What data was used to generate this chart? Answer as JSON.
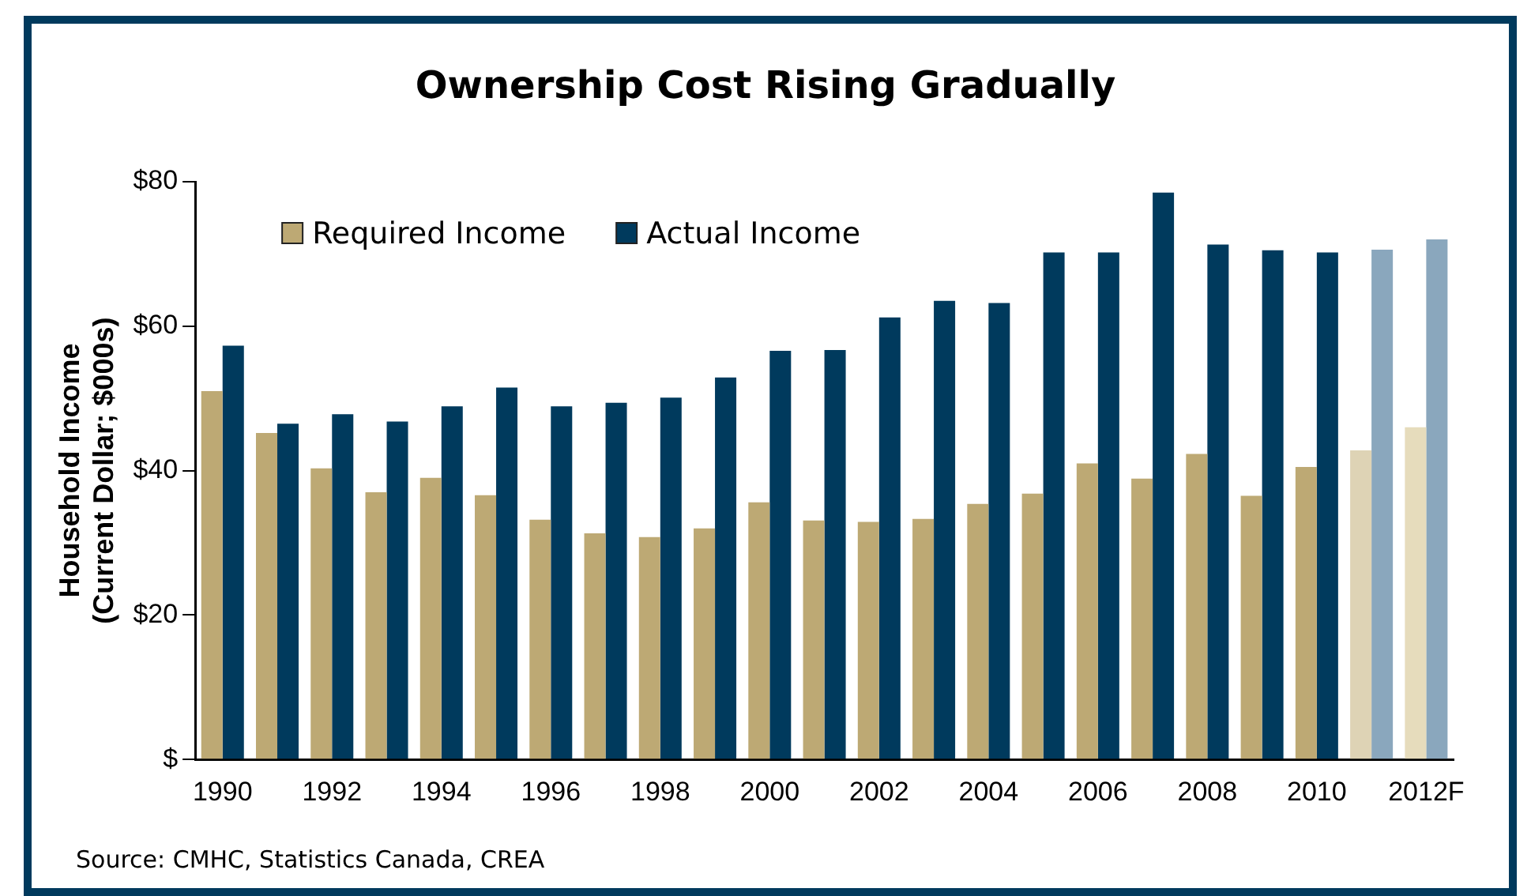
{
  "chart_data": {
    "type": "bar",
    "title": "Ownership Cost Rising Gradually",
    "ylabel": "Household Income\n(Current Dollar; $000s)",
    "categories": [
      "1990",
      null,
      "1992",
      null,
      "1994",
      null,
      "1996",
      null,
      "1998",
      null,
      "2000",
      null,
      "2002",
      null,
      "2004",
      null,
      "2006",
      null,
      "2008",
      null,
      "2010",
      null,
      "2012F"
    ],
    "series": [
      {
        "name": "Required Income",
        "color": "#bda974",
        "colors": [
          "#bda974",
          "#bda974",
          "#bda974",
          "#bda974",
          "#bda974",
          "#bda974",
          "#bda974",
          "#bda974",
          "#bda974",
          "#bda974",
          "#bda974",
          "#bda974",
          "#bda974",
          "#bda974",
          "#bda974",
          "#bda974",
          "#bda974",
          "#bda974",
          "#bda974",
          "#bda974",
          "#bda974",
          "#ded3b5",
          "#e6dcbc"
        ],
        "values": [
          51,
          45.2,
          40.3,
          37,
          39,
          36.6,
          33.2,
          31.3,
          30.8,
          32,
          35.6,
          33.1,
          32.9,
          33.3,
          35.4,
          36.8,
          41,
          38.9,
          42.3,
          36.5,
          40.5,
          42.8,
          46
        ]
      },
      {
        "name": "Actual Income",
        "color": "#003a5d",
        "colors": [
          "#003a5d",
          "#003a5d",
          "#003a5d",
          "#003a5d",
          "#003a5d",
          "#003a5d",
          "#003a5d",
          "#003a5d",
          "#003a5d",
          "#003a5d",
          "#003a5d",
          "#003a5d",
          "#003a5d",
          "#003a5d",
          "#003a5d",
          "#003a5d",
          "#003a5d",
          "#003a5d",
          "#003a5d",
          "#003a5d",
          "#003a5d",
          "#8aa7bd",
          "#8aa7bd"
        ],
        "values": [
          57.3,
          46.5,
          47.8,
          46.8,
          48.9,
          51.5,
          48.9,
          49.4,
          50.1,
          52.9,
          56.6,
          56.7,
          61.2,
          63.5,
          63.2,
          70.2,
          70.2,
          78.5,
          71.3,
          70.5,
          70.2,
          70.6,
          72
        ]
      }
    ],
    "ylim": [
      0,
      80
    ],
    "yticks": [
      {
        "value": 0,
        "label": "$"
      },
      {
        "value": 20,
        "label": "$20"
      },
      {
        "value": 40,
        "label": "$40"
      },
      {
        "value": 60,
        "label": "$60"
      },
      {
        "value": 80,
        "label": "$80"
      }
    ],
    "grid": false,
    "legend": "top left",
    "annotations": [
      "Source: CMHC, Statistics Canada, CREA"
    ]
  }
}
